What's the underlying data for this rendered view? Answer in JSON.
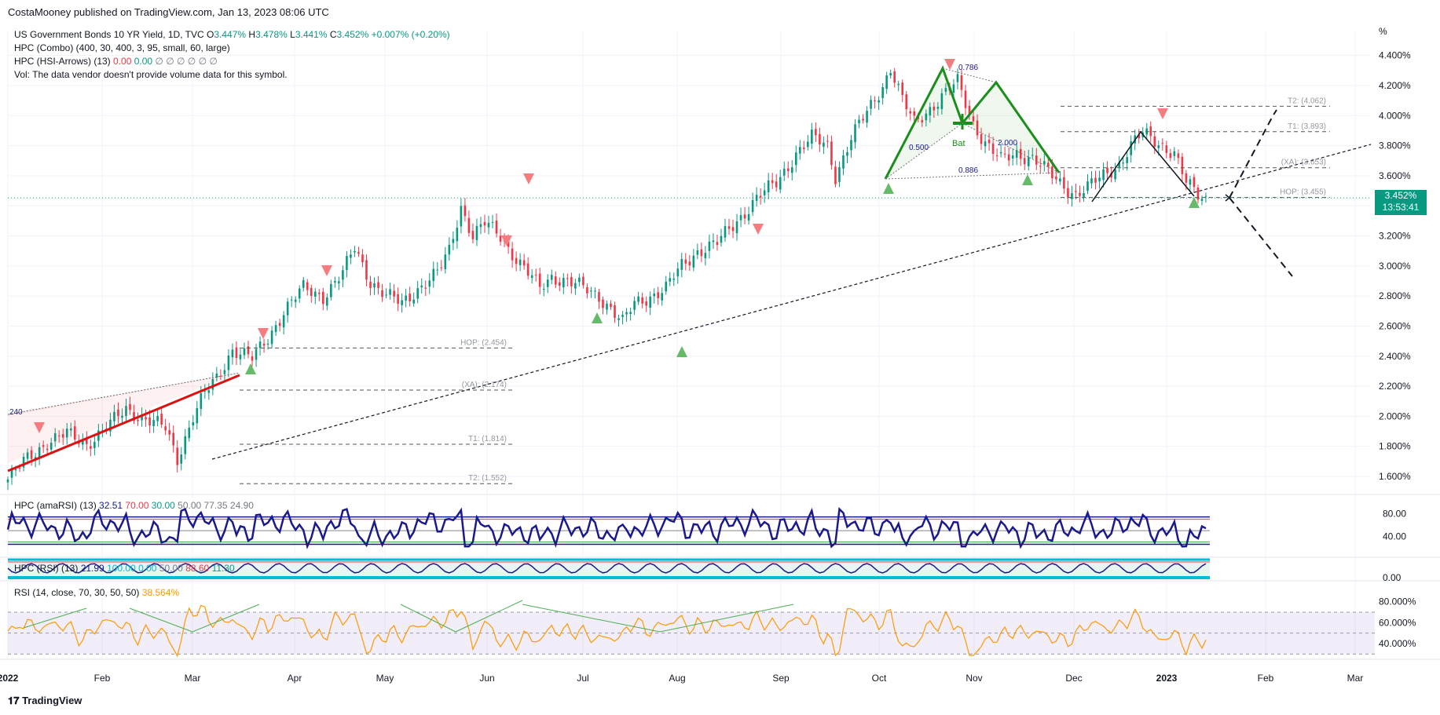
{
  "header": {
    "published": "CostaMooney published on TradingView.com, Jan 13, 2023 08:06 UTC"
  },
  "legend": {
    "symbol": "US Government Bonds 10 YR Yield, 1D, TVC",
    "ohlc": {
      "o": "3.447%",
      "h": "3.478%",
      "l": "3.441%",
      "c": "3.452%",
      "chg": "+0.007% (+0.20%)"
    },
    "ind1": "HPC (Combo) (400, 30, 400, 3, 95, small, 60, large)",
    "ind2_name": "HPC (HSI-Arrows) (13)",
    "ind2_v1": "0.00",
    "ind2_v2": "0.00",
    "ind2_rest": "∅ ∅ ∅ ∅ ∅ ∅",
    "vol": "Vol: The data vendor doesn't provide volume data for this symbol."
  },
  "price_tag": {
    "value": "3.452%",
    "timer": "13:53:41"
  },
  "pane2_legend": {
    "name": "HPC (amaRSI) (13)",
    "v1": "32.51",
    "v2": "70.00",
    "v3": "30.00",
    "v4": "50.00",
    "v5": "77.35",
    "v6": "24.90"
  },
  "pane3_legend": {
    "name": "HPC (RSI) (13)",
    "v1": "21.99",
    "v2": "100.00",
    "v3": "0.00",
    "v4": "50.00",
    "v5": "88.60",
    "v6": "11.30"
  },
  "pane4_legend": {
    "name": "RSI (14, close, 70, 30, 50, 50)",
    "value": "38.564%"
  },
  "branding": "TradingView",
  "colors": {
    "up": "#089981",
    "down": "#f23645",
    "rsi": "#ff9800",
    "amarsi": "#1a1a8c",
    "pattern_green": "#1b8e1b",
    "trend_red": "#e01010"
  },
  "chart_data": {
    "type": "candlestick",
    "unit": "%",
    "y_ticks": [
      "1.600%",
      "1.800%",
      "2.000%",
      "2.200%",
      "2.400%",
      "2.600%",
      "2.800%",
      "3.000%",
      "3.200%",
      "3.400%",
      "3.600%",
      "3.800%",
      "4.000%",
      "4.200%",
      "4.400%"
    ],
    "ylim": [
      1.48,
      4.56
    ],
    "x_ticks": [
      "2022",
      "Feb",
      "Mar",
      "Apr",
      "May",
      "Jun",
      "Jul",
      "Aug",
      "Sep",
      "Oct",
      "Nov",
      "Dec",
      "2023",
      "Feb",
      "Mar"
    ],
    "close_path": [
      [
        0,
        1.58
      ],
      [
        5,
        1.72
      ],
      [
        10,
        1.83
      ],
      [
        15,
        1.88
      ],
      [
        20,
        1.82
      ],
      [
        25,
        1.92
      ],
      [
        30,
        2.05
      ],
      [
        35,
        1.98
      ],
      [
        40,
        1.92
      ],
      [
        43,
        1.72
      ],
      [
        47,
        2.0
      ],
      [
        50,
        2.15
      ],
      [
        53,
        2.25
      ],
      [
        57,
        2.45
      ],
      [
        62,
        2.38
      ],
      [
        66,
        2.52
      ],
      [
        70,
        2.7
      ],
      [
        75,
        2.85
      ],
      [
        80,
        2.8
      ],
      [
        85,
        2.95
      ],
      [
        88,
        3.12
      ],
      [
        92,
        2.9
      ],
      [
        96,
        2.8
      ],
      [
        100,
        2.75
      ],
      [
        104,
        2.85
      ],
      [
        109,
        2.95
      ],
      [
        112,
        3.1
      ],
      [
        115,
        3.4
      ],
      [
        118,
        3.2
      ],
      [
        121,
        3.28
      ],
      [
        125,
        3.2
      ],
      [
        129,
        3.05
      ],
      [
        132,
        2.95
      ],
      [
        135,
        2.85
      ],
      [
        138,
        2.93
      ],
      [
        142,
        2.9
      ],
      [
        146,
        2.85
      ],
      [
        150,
        2.8
      ],
      [
        153,
        2.72
      ],
      [
        156,
        2.62
      ],
      [
        159,
        2.75
      ],
      [
        163,
        2.8
      ],
      [
        167,
        2.85
      ],
      [
        171,
        3.0
      ],
      [
        175,
        3.1
      ],
      [
        180,
        3.15
      ],
      [
        185,
        3.3
      ],
      [
        190,
        3.45
      ],
      [
        195,
        3.55
      ],
      [
        200,
        3.75
      ],
      [
        204,
        3.85
      ],
      [
        208,
        3.8
      ],
      [
        210,
        3.6
      ],
      [
        214,
        3.85
      ],
      [
        218,
        4.02
      ],
      [
        222,
        4.2
      ],
      [
        224,
        4.32
      ],
      [
        227,
        4.1
      ],
      [
        230,
        3.95
      ],
      [
        234,
        4.05
      ],
      [
        238,
        4.15
      ],
      [
        241,
        4.22
      ],
      [
        245,
        3.95
      ],
      [
        248,
        3.82
      ],
      [
        252,
        3.7
      ],
      [
        256,
        3.75
      ],
      [
        260,
        3.72
      ],
      [
        264,
        3.62
      ],
      [
        267,
        3.55
      ],
      [
        271,
        3.48
      ],
      [
        274,
        3.52
      ],
      [
        278,
        3.6
      ],
      [
        282,
        3.68
      ],
      [
        285,
        3.8
      ],
      [
        288,
        3.88
      ],
      [
        292,
        3.82
      ],
      [
        296,
        3.75
      ],
      [
        299,
        3.55
      ],
      [
        302,
        3.47
      ],
      [
        304,
        3.45
      ]
    ],
    "levels_2022": [
      {
        "label": "HOP: (2.454)",
        "value": 2.454
      },
      {
        "label": "(XA): (2.174)",
        "value": 2.174
      },
      {
        "label": "T1: (1.814)",
        "value": 1.814
      },
      {
        "label": "T2: (1.552)",
        "value": 1.552
      }
    ],
    "levels_2023": [
      {
        "label": "T2: (4.062)",
        "value": 4.062
      },
      {
        "label": "T1: (3.893)",
        "value": 3.893
      },
      {
        "label": "(XA): (3.653)",
        "value": 3.653
      },
      {
        "label": "HOP: (3.455)",
        "value": 3.455
      }
    ],
    "fib_labels": [
      {
        "text": "0.786"
      },
      {
        "text": "0.500"
      },
      {
        "text": "0.886"
      },
      {
        "text": "2.000"
      },
      {
        "text": "240"
      }
    ],
    "pattern_label": "Bat",
    "down_arrows_idx": [
      8,
      66,
      80,
      101,
      128,
      191,
      233,
      291
    ],
    "up_arrows_idx": [
      150,
      172,
      219,
      264,
      296
    ],
    "rsi_ticks": [
      "80.000%",
      "60.000%",
      "40.000%"
    ],
    "amarsi_ticks": [
      "80.00",
      "40.00"
    ],
    "hsi_ticks": [
      "0.00"
    ]
  }
}
